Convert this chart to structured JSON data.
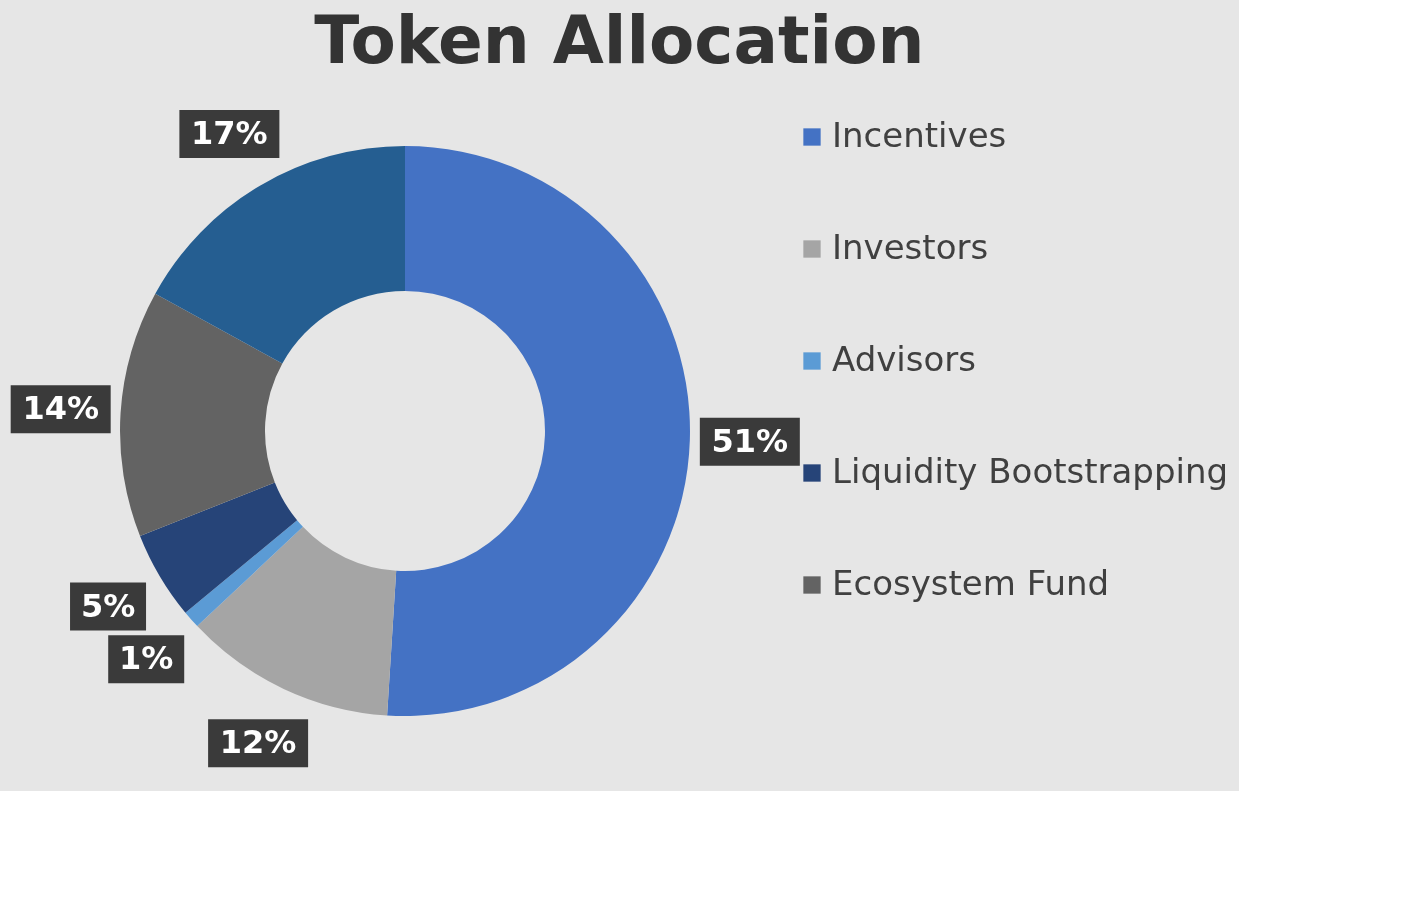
{
  "chart_data": {
    "type": "donut",
    "title": "Token Allocation",
    "categories": [
      "Incentives",
      "Investors",
      "Advisors",
      "Liquidity Bootstrapping",
      "Ecosystem Fund",
      null
    ],
    "values": [
      51,
      12,
      1,
      5,
      14,
      17
    ],
    "colors": [
      "#4472c4",
      "#a5a5a5",
      "#5b9bd5",
      "#264478",
      "#636363",
      "#255e91"
    ],
    "value_labels": [
      "51%",
      "12%",
      "1%",
      "5%",
      "14%",
      "17%"
    ],
    "legend": "right"
  }
}
